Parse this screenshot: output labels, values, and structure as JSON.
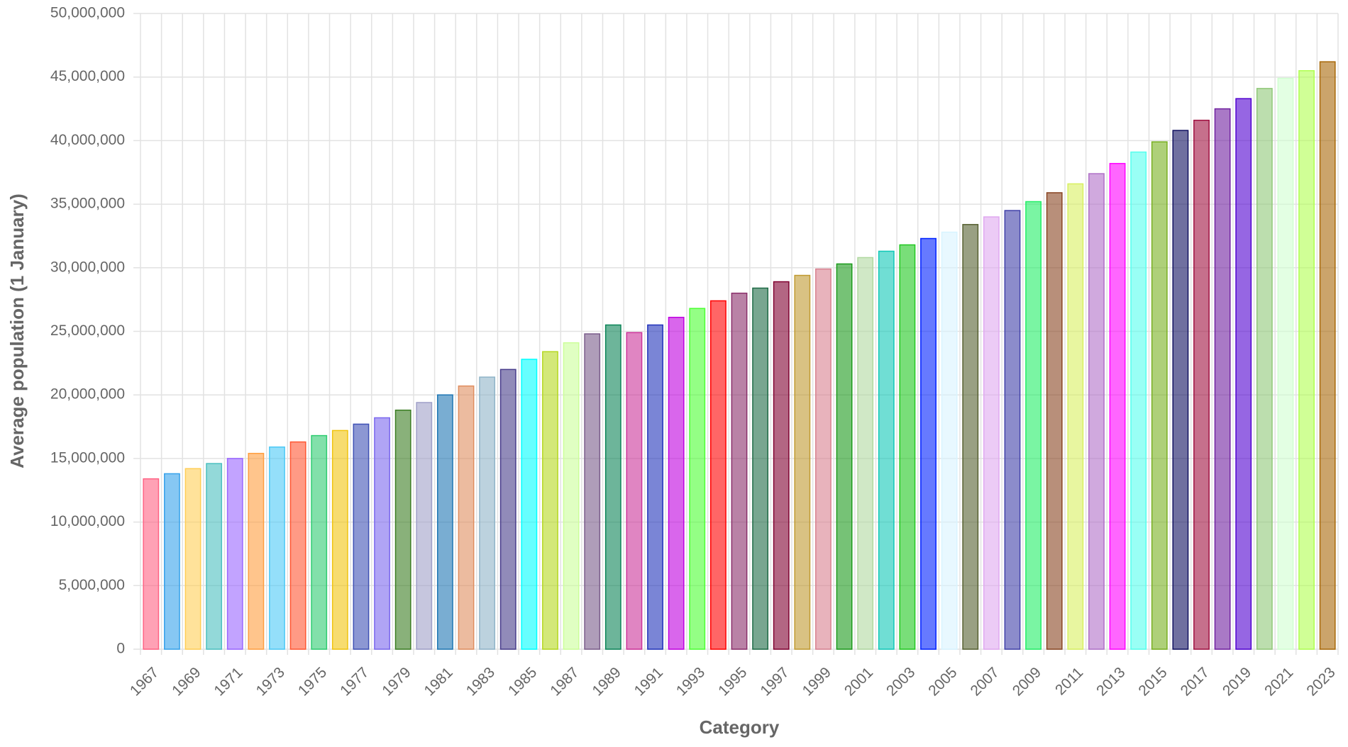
{
  "chart_data": {
    "type": "bar",
    "x_label": "Category",
    "y_label": "Average population (1 January)",
    "categories": [
      "1967",
      null,
      "1969",
      null,
      "1971",
      null,
      "1973",
      null,
      "1975",
      null,
      "1977",
      null,
      "1979",
      null,
      "1981",
      null,
      "1983",
      null,
      "1985",
      null,
      "1987",
      null,
      "1989",
      null,
      "1991",
      null,
      "1993",
      null,
      "1995",
      null,
      "1997",
      null,
      "1999",
      null,
      "2001",
      null,
      "2003",
      null,
      "2005",
      null,
      "2007",
      null,
      "2009",
      null,
      "2011",
      null,
      "2013",
      null,
      "2015",
      null,
      "2017",
      null,
      "2019",
      null,
      "2021",
      null,
      "2023"
    ],
    "values": [
      13400000,
      13800000,
      14200000,
      14600000,
      15000000,
      15400000,
      15900000,
      16300000,
      16800000,
      17200000,
      17700000,
      18200000,
      18800000,
      19400000,
      20000000,
      20700000,
      21400000,
      22000000,
      22800000,
      23400000,
      24100000,
      24800000,
      25500000,
      24900000,
      25500000,
      26100000,
      26800000,
      27400000,
      28000000,
      28400000,
      28900000,
      29400000,
      29900000,
      30300000,
      30800000,
      31300000,
      31800000,
      32300000,
      32800000,
      33400000,
      34000000,
      34500000,
      35200000,
      35900000,
      36600000,
      37400000,
      38200000,
      39100000,
      39900000,
      40800000,
      41600000,
      42500000,
      43300000,
      44100000,
      44900000,
      45500000,
      46200000
    ],
    "colors": [
      "#ff6384",
      "#36a2eb",
      "#ffce56",
      "#4bc0c0",
      "#9966ff",
      "#ff9f40",
      "#4dc9f6",
      "#ff5733",
      "#2ecc71",
      "#f1c40f",
      "#3f51b5",
      "#7b68ee",
      "#3a7d22",
      "#a0a0c8",
      "#1f77b4",
      "#e08e5f",
      "#8fb4c8",
      "#483d8b",
      "#00ffff",
      "#b5d820",
      "#ccff99",
      "#7a5c8a",
      "#0b8457",
      "#cc3399",
      "#2233bb",
      "#c000e0",
      "#4cff33",
      "#ff0000",
      "#8b2f6b",
      "#1e6b46",
      "#800030",
      "#c09a30",
      "#d88090",
      "#1a9a1a",
      "#b0d8a0",
      "#10c8b8",
      "#20c820",
      "#0022ff",
      "#d8f4ff",
      "#556030",
      "#e0a8f0",
      "#4040a8",
      "#22ee66",
      "#884422",
      "#d8f060",
      "#b070c8",
      "#ff00ff",
      "#55ffee",
      "#78b020",
      "#101060",
      "#a01040",
      "#7020a0",
      "#5000d0",
      "#90c878",
      "#d0ffd0",
      "#b0ff50",
      "#a86808"
    ],
    "ylim": [
      0,
      50000000
    ],
    "yticks": [
      0,
      {
        "value": 5000000,
        "label": "5,000,000"
      },
      {
        "value": 10000000,
        "label": "10,000,000"
      },
      {
        "value": 15000000,
        "label": "15,000,000"
      },
      {
        "value": 20000000,
        "label": "20,000,000"
      },
      {
        "value": 25000000,
        "label": "25,000,000"
      },
      {
        "value": 30000000,
        "label": "30,000,000"
      },
      {
        "value": 35000000,
        "label": "35,000,000"
      },
      {
        "value": 40000000,
        "label": "40,000,000"
      },
      {
        "value": 45000000,
        "label": "45,000,000"
      },
      {
        "value": 50000000,
        "label": "50,000,000"
      }
    ],
    "grid": true
  }
}
